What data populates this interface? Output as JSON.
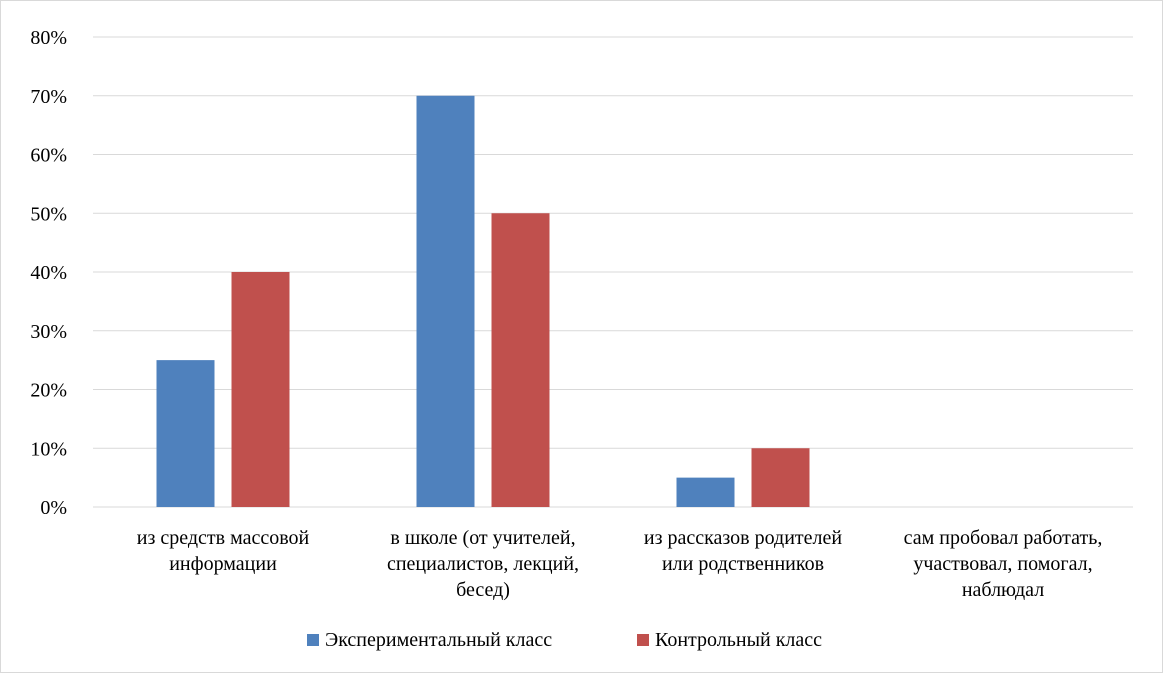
{
  "chart_data": {
    "type": "bar",
    "categories": [
      [
        "из средств массовой",
        "информации"
      ],
      [
        "в школе (от учителей,",
        "специалистов, лекций,",
        "бесед)"
      ],
      [
        "из рассказов родителей",
        "или родственников"
      ],
      [
        "сам пробовал работать,",
        "участвовал, помогал,",
        "наблюдал"
      ]
    ],
    "series": [
      {
        "name": "Экспериментальный класс",
        "values": [
          25,
          70,
          5,
          0
        ],
        "color": "#4F81BD"
      },
      {
        "name": "Контрольный класс",
        "values": [
          40,
          50,
          10,
          0
        ],
        "color": "#C0504D"
      }
    ],
    "ylim": [
      0,
      80
    ],
    "ytick_labels": [
      "0%",
      "10%",
      "20%",
      "30%",
      "40%",
      "50%",
      "60%",
      "70%",
      "80%"
    ],
    "y_unit": "%",
    "grid": true,
    "gridline_color": "#d9d9d9",
    "legend_position": "bottom",
    "title": "",
    "xlabel": "",
    "ylabel": ""
  }
}
